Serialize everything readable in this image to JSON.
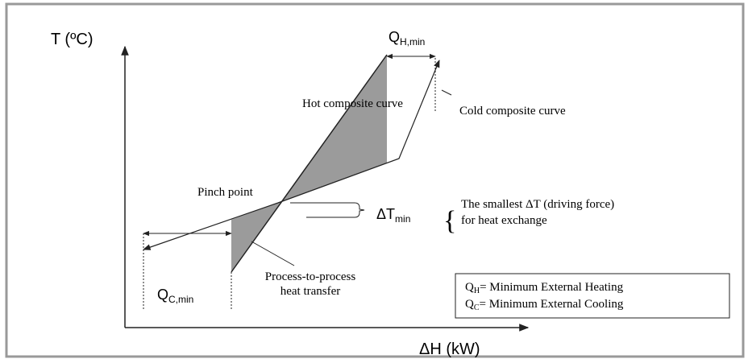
{
  "y_axis_label": "T (ºC)",
  "x_axis_label": "ΔH (kW)",
  "hot_curve_label": "Hot composite curve",
  "cold_curve_label": "Cold composite curve",
  "pinch_label": "Pinch point",
  "q_h_min": {
    "main": "Q",
    "sub": "H,min"
  },
  "q_c_min": {
    "main": "Q",
    "sub": "C,min"
  },
  "dt_min": {
    "main": "ΔT",
    "sub": "min"
  },
  "dt_note": [
    "The smallest ΔT (driving force)",
    "for heat exchange"
  ],
  "transfer_label": [
    "Process-to-process",
    "heat transfer"
  ],
  "legend": [
    {
      "symbol": "Q",
      "sub": "H",
      "text": "= Minimum External Heating"
    },
    {
      "symbol": "Q",
      "sub": "C",
      "text": "= Minimum External Cooling"
    }
  ]
}
